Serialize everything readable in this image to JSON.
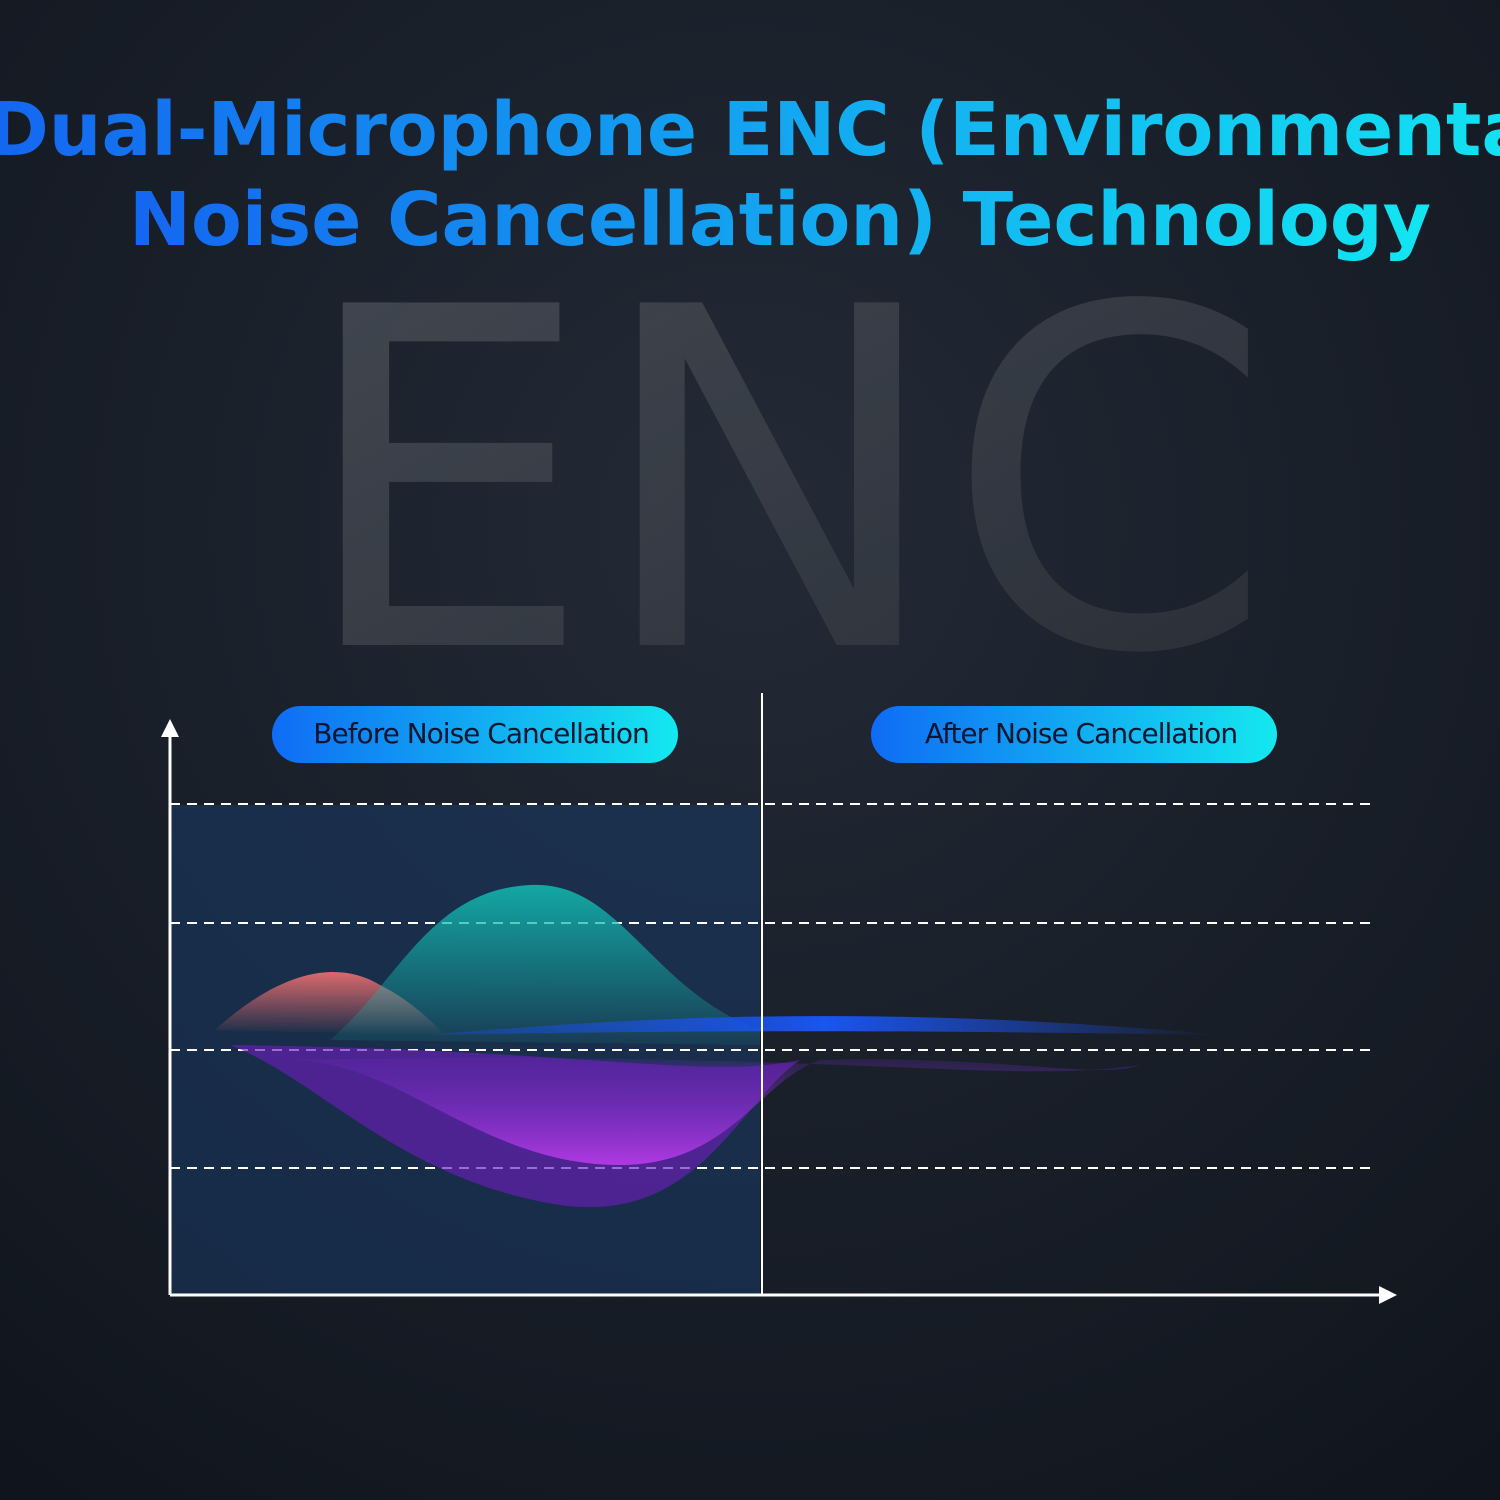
{
  "title": {
    "lines": [
      "Dual-Microphone ENC (Environmental",
      "Noise Cancellation) Technology"
    ]
  },
  "watermark": "ENC",
  "panels": [
    {
      "label": "Before Noise Cancellation"
    },
    {
      "label": "After Noise Cancellation"
    }
  ]
}
